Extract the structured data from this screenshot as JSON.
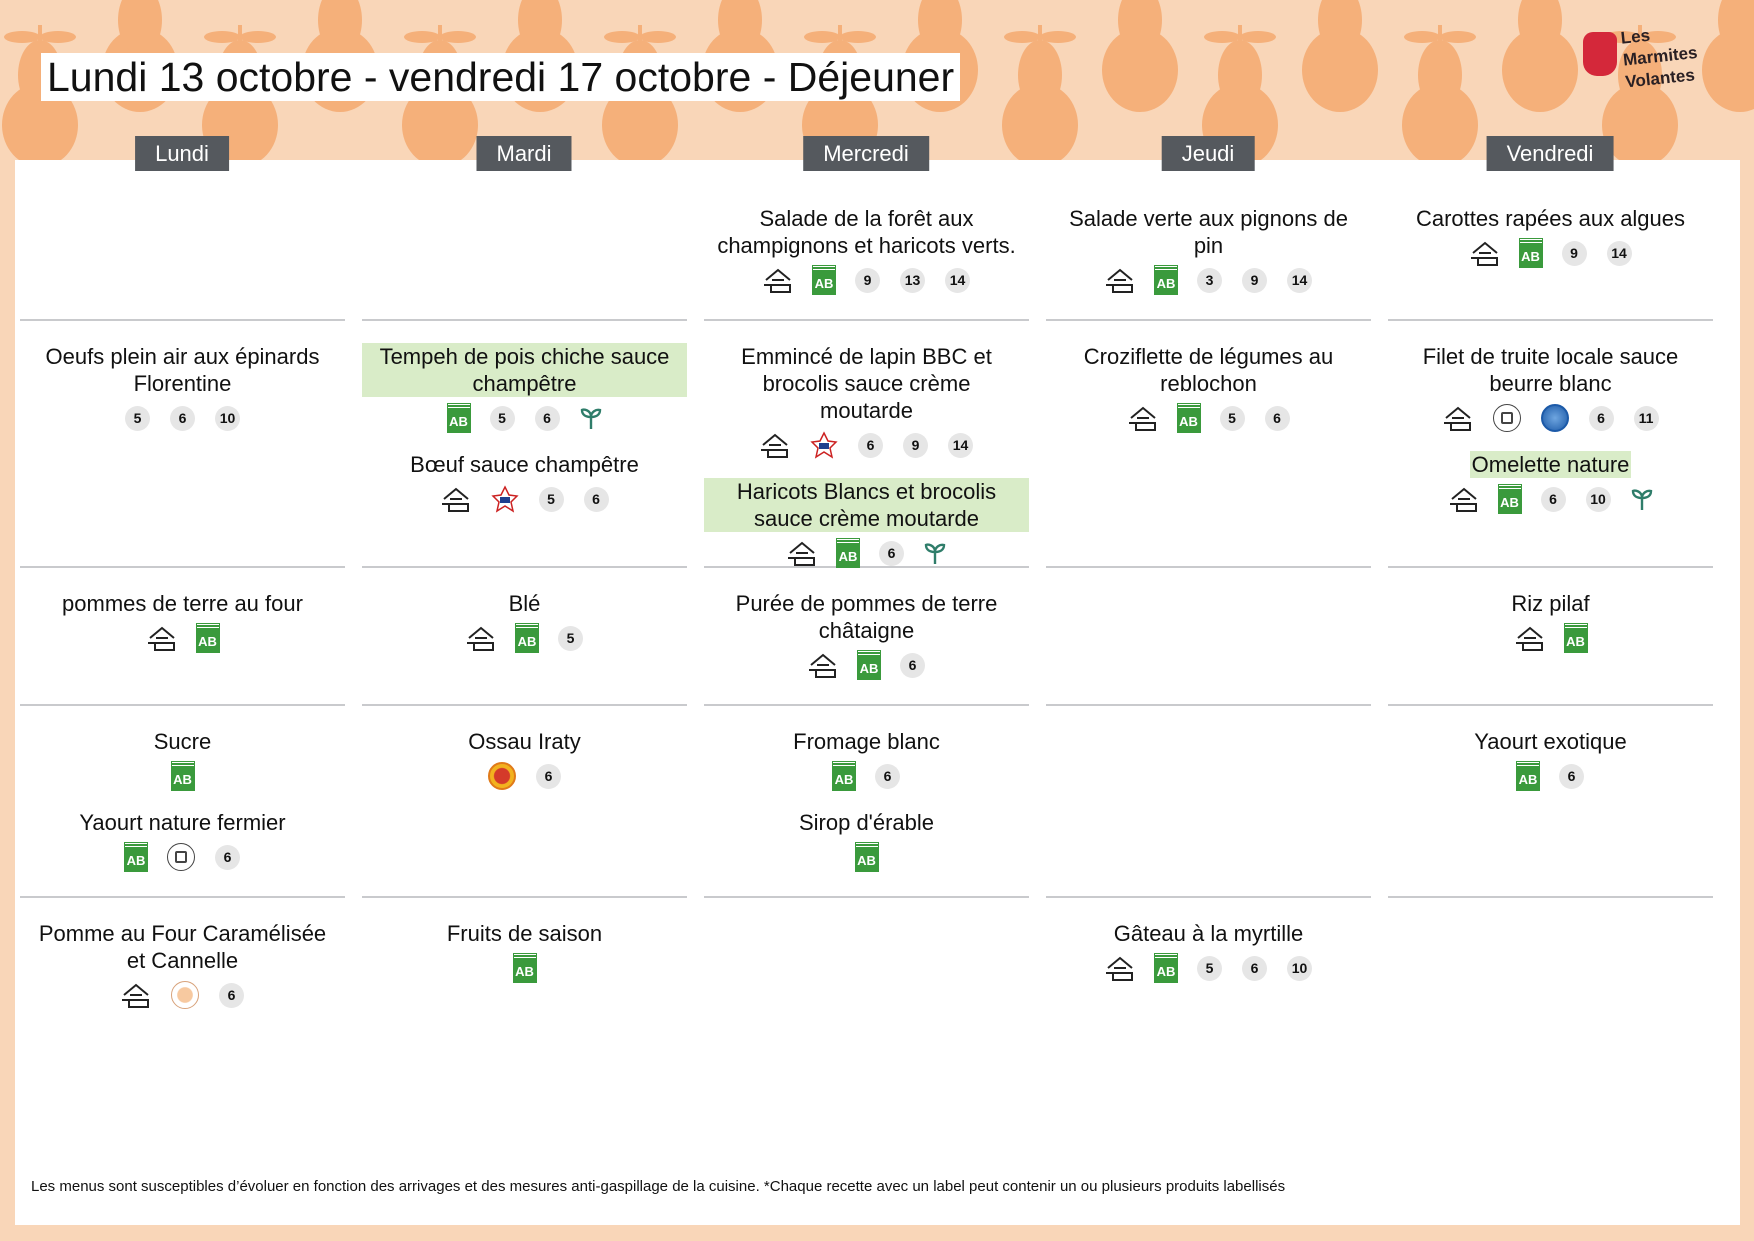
{
  "title": "Lundi 13 octobre - vendredi 17 octobre  - Déjeuner",
  "logo": {
    "text": "Les Marmites Volantes"
  },
  "colors": {
    "background": "#f9d6b8",
    "pear": "#f5b07a",
    "day_header": "#55595e",
    "highlight": "#d9ecc8",
    "bio": "#3a9a3c"
  },
  "days": [
    {
      "label": "Lundi",
      "rows": [
        [],
        [
          {
            "name": "Oeufs plein air aux épinards Florentine",
            "icons": [
              {
                "t": "allergen",
                "v": "5"
              },
              {
                "t": "allergen",
                "v": "6"
              },
              {
                "t": "allergen",
                "v": "10"
              }
            ]
          }
        ],
        [
          {
            "name": "pommes de terre au four",
            "icons": [
              {
                "t": "house"
              },
              {
                "t": "ab"
              }
            ]
          }
        ],
        [
          {
            "name": "Sucre",
            "icons": [
              {
                "t": "ab"
              }
            ]
          },
          {
            "name": "Yaourt nature fermier",
            "icons": [
              {
                "t": "ab"
              },
              {
                "t": "local"
              },
              {
                "t": "allergen",
                "v": "6"
              }
            ]
          }
        ],
        [
          {
            "name": "Pomme au Four Caramélisée et Cannelle",
            "icons": [
              {
                "t": "house"
              },
              {
                "t": "craft"
              },
              {
                "t": "allergen",
                "v": "6"
              }
            ]
          }
        ]
      ]
    },
    {
      "label": "Mardi",
      "rows": [
        [],
        [
          {
            "name": "Tempeh de pois chiche sauce champêtre",
            "hl": true,
            "icons": [
              {
                "t": "ab"
              },
              {
                "t": "allergen",
                "v": "5"
              },
              {
                "t": "allergen",
                "v": "6"
              },
              {
                "t": "veg"
              }
            ]
          },
          {
            "name": "Bœuf sauce champêtre",
            "icons": [
              {
                "t": "house"
              },
              {
                "t": "france"
              },
              {
                "t": "allergen",
                "v": "5"
              },
              {
                "t": "allergen",
                "v": "6"
              }
            ]
          }
        ],
        [
          {
            "name": "Blé",
            "icons": [
              {
                "t": "house"
              },
              {
                "t": "ab"
              },
              {
                "t": "allergen",
                "v": "5"
              }
            ]
          }
        ],
        [
          {
            "name": "Ossau Iraty",
            "icons": [
              {
                "t": "aop"
              },
              {
                "t": "allergen",
                "v": "6"
              }
            ]
          }
        ],
        [
          {
            "name": "Fruits de saison",
            "icons": [
              {
                "t": "ab"
              }
            ]
          }
        ]
      ]
    },
    {
      "label": "Mercredi",
      "rows": [
        [
          {
            "name": "Salade de la forêt aux champignons et haricots verts.",
            "icons": [
              {
                "t": "house"
              },
              {
                "t": "ab"
              },
              {
                "t": "allergen",
                "v": "9"
              },
              {
                "t": "allergen",
                "v": "13"
              },
              {
                "t": "allergen",
                "v": "14"
              }
            ]
          }
        ],
        [
          {
            "name": "Emmincé de lapin BBC et brocolis sauce crème moutarde",
            "icons": [
              {
                "t": "house"
              },
              {
                "t": "france"
              },
              {
                "t": "allergen",
                "v": "6"
              },
              {
                "t": "allergen",
                "v": "9"
              },
              {
                "t": "allergen",
                "v": "14"
              }
            ]
          },
          {
            "name": "Haricots Blancs et brocolis sauce crème moutarde",
            "hl": true,
            "icons": [
              {
                "t": "house"
              },
              {
                "t": "ab"
              },
              {
                "t": "allergen",
                "v": "6"
              },
              {
                "t": "veg"
              }
            ]
          }
        ],
        [
          {
            "name": "Purée de pommes de terre châtaigne",
            "icons": [
              {
                "t": "house"
              },
              {
                "t": "ab"
              },
              {
                "t": "allergen",
                "v": "6"
              }
            ]
          }
        ],
        [
          {
            "name": "Fromage blanc",
            "icons": [
              {
                "t": "ab"
              },
              {
                "t": "allergen",
                "v": "6"
              }
            ]
          },
          {
            "name": "Sirop d'érable",
            "icons": [
              {
                "t": "ab"
              }
            ]
          }
        ],
        []
      ]
    },
    {
      "label": "Jeudi",
      "rows": [
        [
          {
            "name": "Salade verte aux pignons de pin",
            "icons": [
              {
                "t": "house"
              },
              {
                "t": "ab"
              },
              {
                "t": "allergen",
                "v": "3"
              },
              {
                "t": "allergen",
                "v": "9"
              },
              {
                "t": "allergen",
                "v": "14"
              }
            ]
          }
        ],
        [
          {
            "name": "Croziflette de légumes au reblochon",
            "icons": [
              {
                "t": "house"
              },
              {
                "t": "ab"
              },
              {
                "t": "allergen",
                "v": "5"
              },
              {
                "t": "allergen",
                "v": "6"
              }
            ]
          }
        ],
        [],
        [],
        [
          {
            "name": "Gâteau à la myrtille",
            "icons": [
              {
                "t": "house"
              },
              {
                "t": "ab"
              },
              {
                "t": "allergen",
                "v": "5"
              },
              {
                "t": "allergen",
                "v": "6"
              },
              {
                "t": "allergen",
                "v": "10"
              }
            ]
          }
        ]
      ]
    },
    {
      "label": "Vendredi",
      "rows": [
        [
          {
            "name": "Carottes rapées aux algues",
            "icons": [
              {
                "t": "house"
              },
              {
                "t": "ab"
              },
              {
                "t": "allergen",
                "v": "9"
              },
              {
                "t": "allergen",
                "v": "14"
              }
            ]
          }
        ],
        [
          {
            "name": "Filet de truite locale sauce beurre blanc",
            "icons": [
              {
                "t": "house"
              },
              {
                "t": "local"
              },
              {
                "t": "msc"
              },
              {
                "t": "allergen",
                "v": "6"
              },
              {
                "t": "allergen",
                "v": "11"
              }
            ]
          },
          {
            "name": "Omelette nature",
            "hlsmall": true,
            "icons": [
              {
                "t": "house"
              },
              {
                "t": "ab"
              },
              {
                "t": "allergen",
                "v": "6"
              },
              {
                "t": "allergen",
                "v": "10"
              },
              {
                "t": "veg"
              }
            ]
          }
        ],
        [
          {
            "name": "Riz pilaf",
            "icons": [
              {
                "t": "house"
              },
              {
                "t": "ab"
              }
            ]
          }
        ],
        [
          {
            "name": "Yaourt exotique",
            "icons": [
              {
                "t": "ab"
              },
              {
                "t": "allergen",
                "v": "6"
              }
            ]
          }
        ],
        []
      ]
    }
  ],
  "footer": "Les menus sont susceptibles d’évoluer en fonction des arrivages et des mesures anti-gaspillage de la cuisine. *Chaque recette avec un label peut contenir un ou plusieurs produits labellisés"
}
